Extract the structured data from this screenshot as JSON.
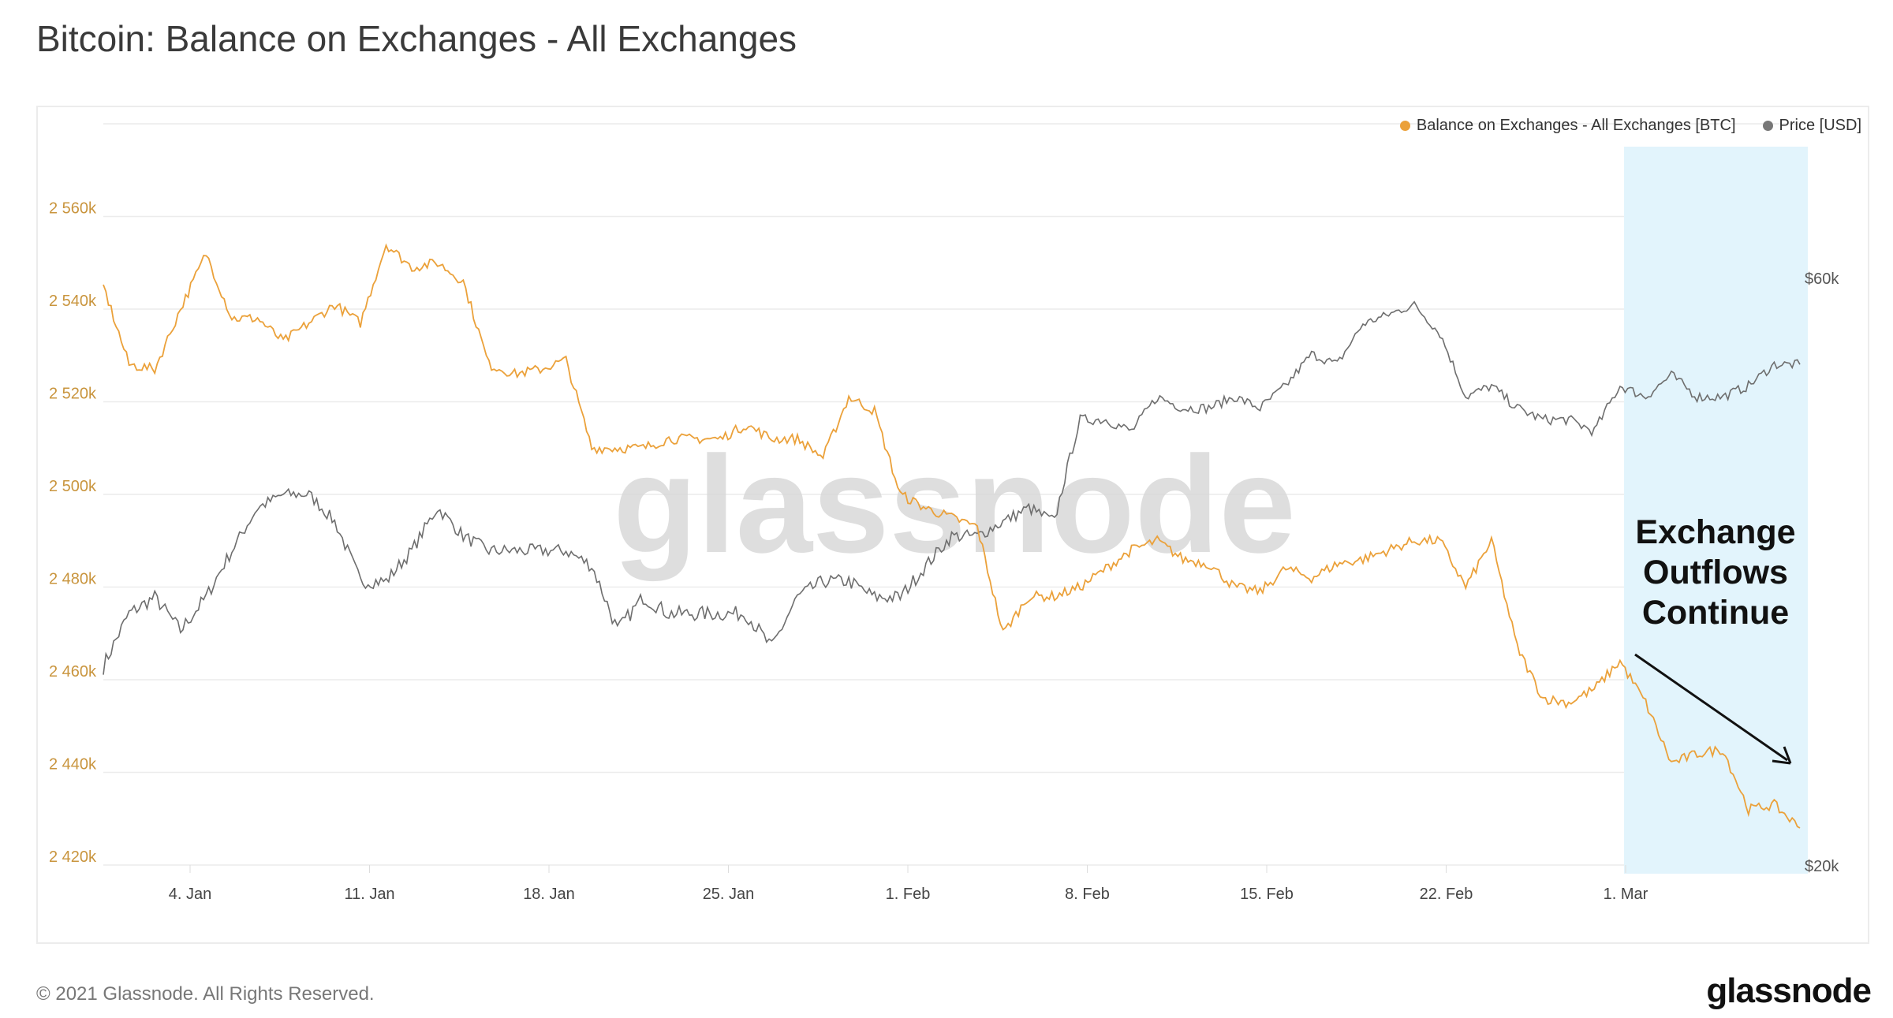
{
  "title": "Bitcoin: Balance on Exchanges - All Exchanges",
  "footer": {
    "copyright": "© 2021 Glassnode. All Rights Reserved.",
    "logo": "glassnode"
  },
  "watermark": "glassnode",
  "annotation": {
    "lines": [
      "Exchange",
      "Outflows",
      "Continue"
    ]
  },
  "colors": {
    "balance": "#eba13a",
    "price": "#6e6e6e",
    "highlight": "#e2f4fc",
    "left_axis": "#c9953e",
    "right_axis": "#555555"
  },
  "chart_data": {
    "type": "line",
    "title": "Bitcoin: Balance on Exchanges - All Exchanges",
    "legend": [
      "Balance on Exchanges - All Exchanges [BTC]",
      "Price [USD]"
    ],
    "legend_position": "top-right",
    "x_start": "2021-01-01",
    "x_end": "2021-03-08",
    "x_ticks": [
      "4. Jan",
      "11. Jan",
      "18. Jan",
      "25. Jan",
      "1. Feb",
      "8. Feb",
      "15. Feb",
      "22. Feb",
      "1. Mar"
    ],
    "x_tick_days": [
      3,
      10,
      17,
      24,
      31,
      38,
      45,
      52,
      59
    ],
    "y_left": {
      "ticks": [
        "2 420k",
        "2 440k",
        "2 460k",
        "2 480k",
        "2 500k",
        "2 520k",
        "2 540k",
        "2 560k"
      ],
      "tick_values": [
        2420,
        2440,
        2460,
        2480,
        2500,
        2520,
        2540,
        2560
      ],
      "range": [
        2420,
        2580
      ],
      "unit": "k BTC"
    },
    "y_right": {
      "ticks": [
        "$20k",
        "$60k"
      ],
      "tick_values": [
        20,
        60
      ],
      "range": [
        20,
        60
      ],
      "scale": "log",
      "unit": "k USD"
    },
    "highlight_range_days": [
      59,
      66.3
    ],
    "grid": true,
    "series": [
      {
        "name": "Balance on Exchanges - All Exchanges [BTC]",
        "axis": "left",
        "values": [
          2545,
          2528,
          2527,
          2540,
          2552,
          2538,
          2538,
          2533,
          2537,
          2541,
          2537,
          2554,
          2549,
          2550,
          2546,
          2528,
          2526,
          2527,
          2529,
          2510,
          2510,
          2510,
          2512,
          2512,
          2512,
          2515,
          2512,
          2512,
          2508,
          2521,
          2518,
          2500,
          2497,
          2495,
          2493,
          2470,
          2478,
          2478,
          2480,
          2484,
          2488,
          2490,
          2486,
          2485,
          2480,
          2479,
          2484,
          2482,
          2485,
          2486,
          2488,
          2490,
          2490,
          2480,
          2490,
          2467,
          2456,
          2455,
          2458,
          2464,
          2455,
          2442,
          2444,
          2445,
          2432,
          2433,
          2428
        ]
      },
      {
        "name": "Price [USD]",
        "axis": "right",
        "values": [
          29,
          32,
          33,
          31,
          33,
          36,
          39,
          40,
          40,
          38,
          34,
          34,
          36,
          39,
          37,
          36,
          36,
          36,
          36,
          35,
          31,
          33,
          32,
          32,
          32,
          32,
          30,
          33,
          34,
          34,
          33,
          33,
          35,
          37,
          37,
          38,
          39,
          38,
          46,
          46,
          45,
          48,
          47,
          47,
          48,
          47,
          49,
          52,
          51,
          55,
          56,
          57,
          54,
          48,
          49,
          47,
          46,
          46,
          45,
          49,
          48,
          50,
          48,
          48,
          49,
          51,
          51
        ]
      }
    ]
  }
}
